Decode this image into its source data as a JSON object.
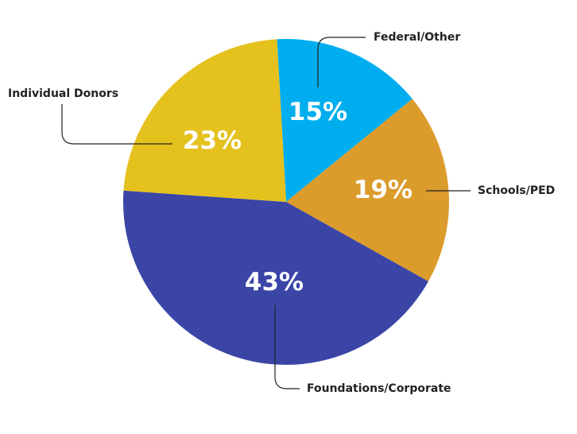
{
  "chart_data": {
    "type": "pie",
    "slices": [
      {
        "label": "Federal/Other",
        "value": 15,
        "value_label": "15%",
        "color": "#00AEEF"
      },
      {
        "label": "Schools/PED",
        "value": 19,
        "value_label": "19%",
        "color": "#DC9C2C"
      },
      {
        "label": "Foundations/Corporate",
        "value": 43,
        "value_label": "43%",
        "color": "#3A45A6"
      },
      {
        "label": "Individual Donors",
        "value": 23,
        "value_label": "23%",
        "color": "#E5C11E"
      }
    ],
    "legend": "callout labels with leader lines"
  }
}
